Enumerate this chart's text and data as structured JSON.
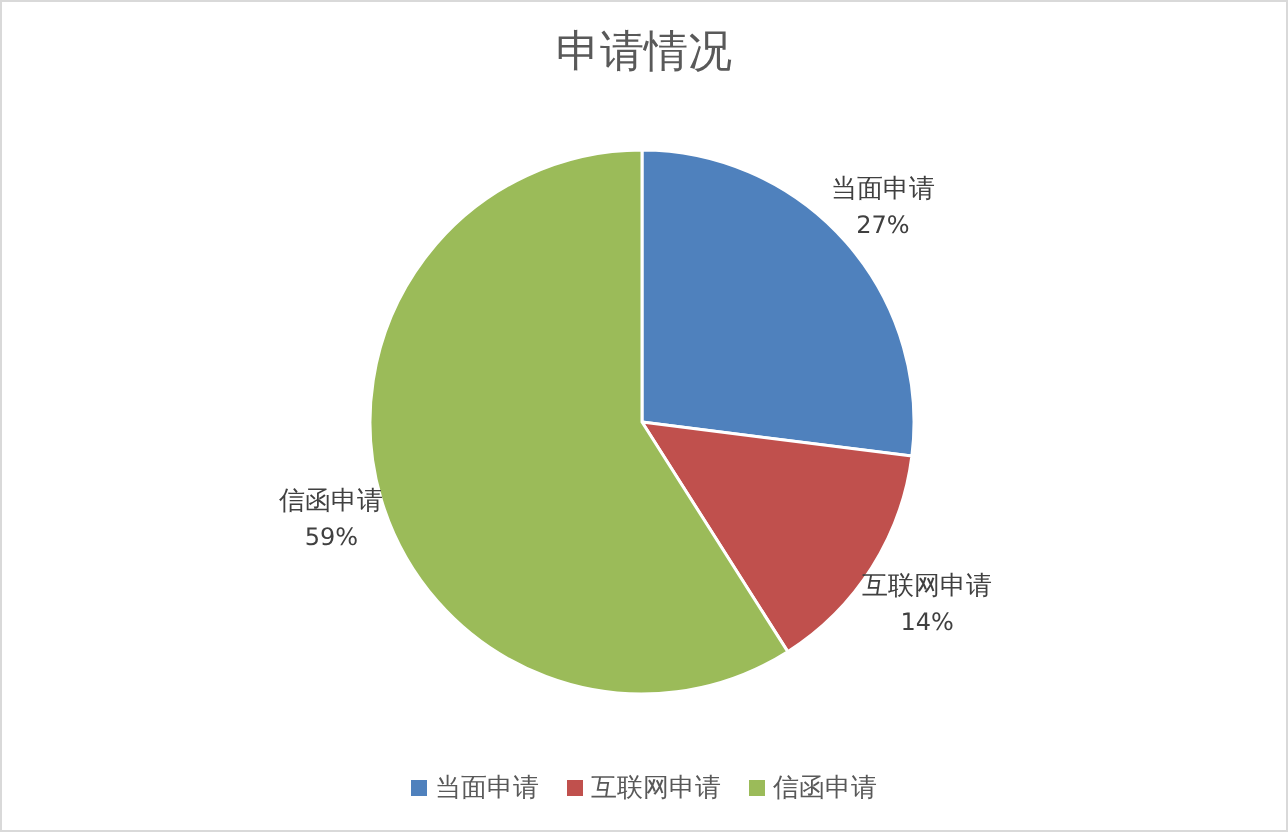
{
  "chart_data": {
    "type": "pie",
    "title": "申请情况",
    "categories": [
      "当面申请",
      "互联网申请",
      "信函申请"
    ],
    "values": [
      27,
      14,
      59
    ],
    "colors": [
      "#4f81bd",
      "#c0504d",
      "#9bbb59"
    ],
    "value_labels": [
      "27%",
      "14%",
      "59%"
    ],
    "legend": "bottom"
  }
}
